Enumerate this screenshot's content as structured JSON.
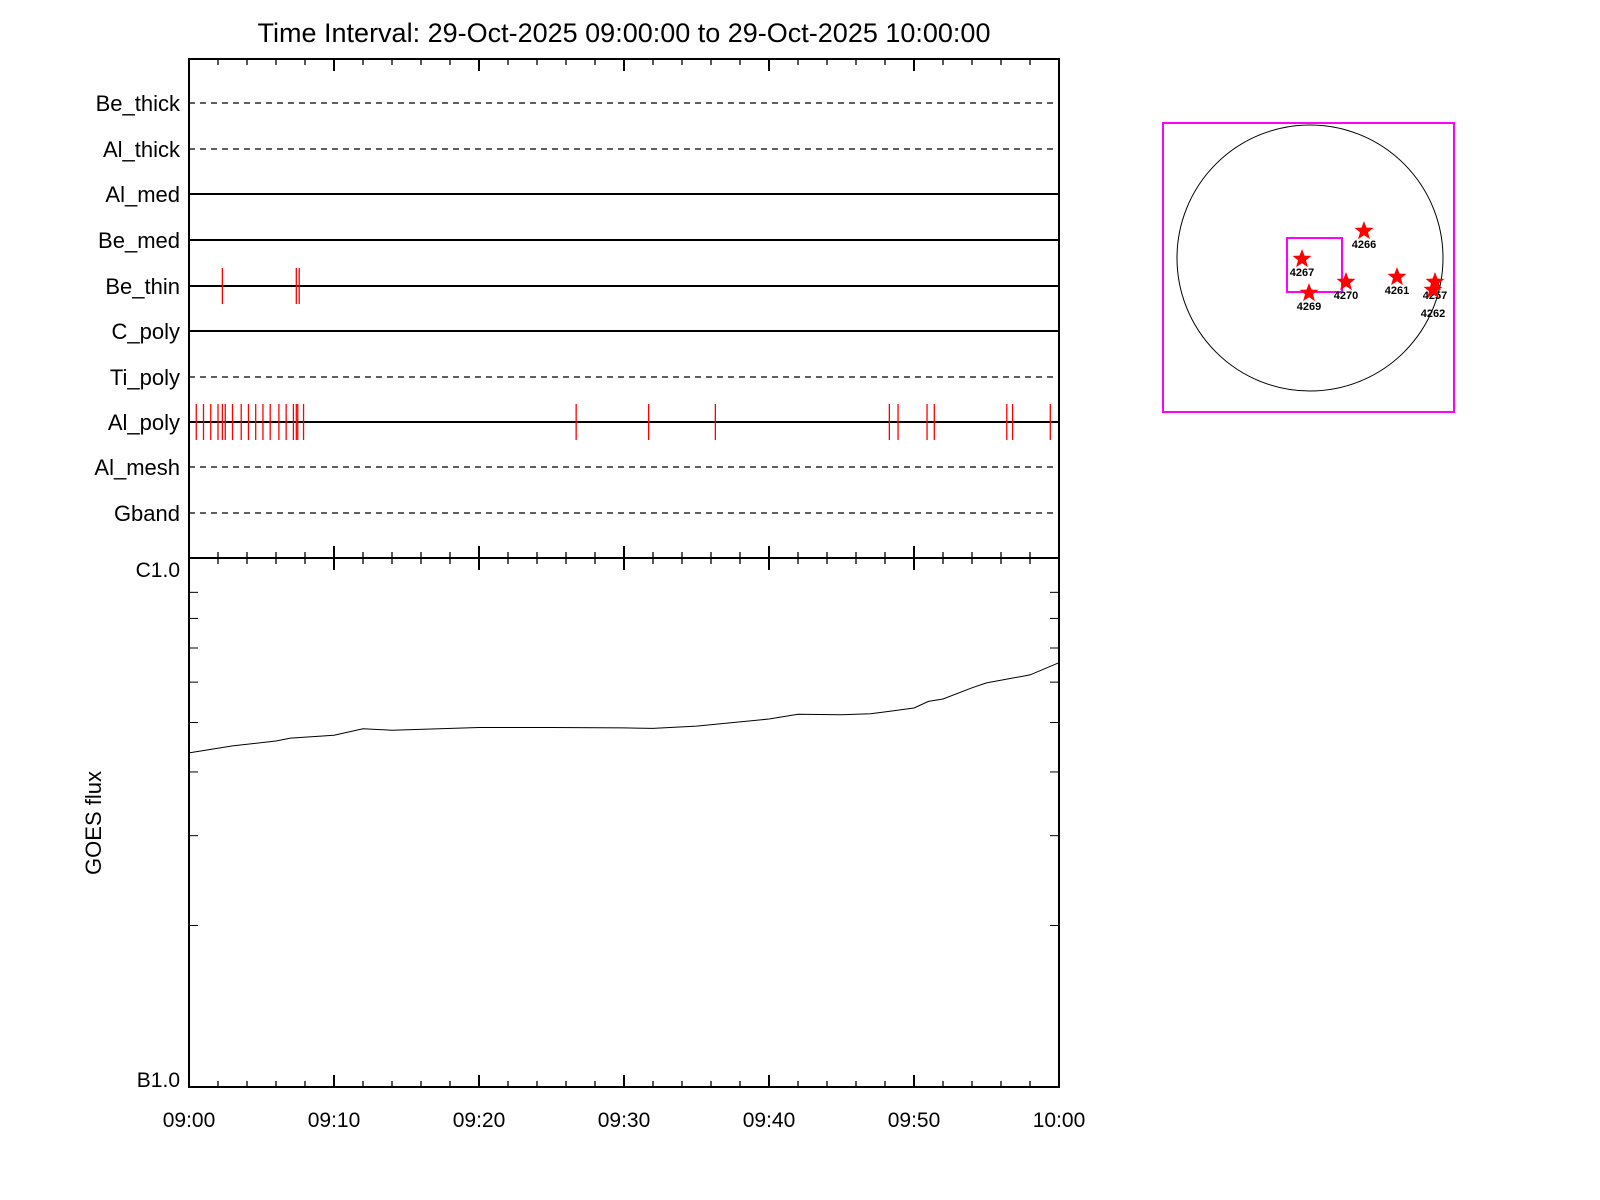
{
  "chart_data": [
    {
      "type": "timeline",
      "title": "Time Interval: 29-Oct-2025 09:00:00 to 29-Oct-2025 10:00:00",
      "xlim_minutes_after_0900": [
        0,
        60
      ],
      "rows": [
        {
          "name": "Be_thick",
          "style": "dashed",
          "events": []
        },
        {
          "name": "Al_thick",
          "style": "dashed",
          "events": []
        },
        {
          "name": "Al_med",
          "style": "solid",
          "events": []
        },
        {
          "name": "Be_med",
          "style": "solid",
          "events": []
        },
        {
          "name": "Be_thin",
          "style": "solid",
          "events": [
            2.3,
            7.4,
            7.6
          ]
        },
        {
          "name": "C_poly",
          "style": "solid",
          "events": []
        },
        {
          "name": "Ti_poly",
          "style": "dashed",
          "events": []
        },
        {
          "name": "Al_poly",
          "style": "solid",
          "events": [
            0.5,
            1.0,
            1.5,
            2.0,
            2.3,
            2.5,
            3.0,
            3.6,
            4.1,
            4.6,
            5.1,
            5.6,
            6.2,
            6.7,
            7.2,
            7.4,
            7.5,
            7.9,
            26.7,
            31.7,
            36.3,
            48.3,
            48.9,
            50.9,
            51.4,
            56.4,
            56.8,
            59.4
          ]
        },
        {
          "name": "Al_mesh",
          "style": "dashed",
          "events": []
        },
        {
          "name": "Gband",
          "style": "dashed",
          "events": []
        }
      ],
      "event_color": "#ff0000"
    },
    {
      "type": "line",
      "ylabel": "GOES flux",
      "yscale": "log",
      "ylim": [
        1e-07,
        1e-06
      ],
      "ytick_labels": [
        "C1.0",
        "B1.0"
      ],
      "xtick_labels": [
        "09:00",
        "09:10",
        "09:20",
        "09:30",
        "09:40",
        "09:50",
        "10:00"
      ],
      "x_minutes": [
        0,
        3,
        6,
        7,
        10,
        12,
        14,
        20,
        25,
        30,
        32,
        35,
        40,
        42,
        45,
        47,
        50,
        51,
        52,
        54,
        55,
        58,
        60
      ],
      "y": [
        4.36e-07,
        4.5e-07,
        4.6e-07,
        4.66e-07,
        4.72e-07,
        4.86e-07,
        4.83e-07,
        4.89e-07,
        4.89e-07,
        4.88e-07,
        4.87e-07,
        4.92e-07,
        5.08e-07,
        5.19e-07,
        5.18e-07,
        5.2e-07,
        5.34e-07,
        5.5e-07,
        5.56e-07,
        5.85e-07,
        5.98e-07,
        6.2e-07,
        6.55e-07
      ]
    },
    {
      "type": "solar_disk_map",
      "frame_color": "#ff00ff",
      "marker_color": "#ff0000",
      "regions": [
        {
          "label": "4266"
        },
        {
          "label": "4267"
        },
        {
          "label": "4269"
        },
        {
          "label": "4270"
        },
        {
          "label": "4261"
        },
        {
          "label": "4257"
        },
        {
          "label": "4262"
        }
      ]
    }
  ]
}
